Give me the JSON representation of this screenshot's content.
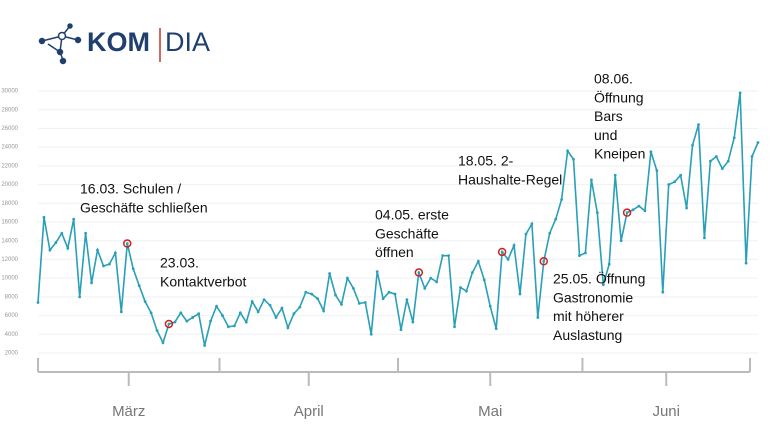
{
  "logo": [
    "KOM",
    "DIA"
  ],
  "chart_data": {
    "type": "line",
    "color": "#2a9fb8",
    "grid": true,
    "ylim": [
      2000,
      30000
    ],
    "yticks": [
      2000,
      4000,
      6000,
      8000,
      10000,
      12000,
      14000,
      16000,
      18000,
      20000,
      22000,
      24000,
      26000,
      28000,
      30000
    ],
    "months": [
      "März",
      "April",
      "Mai",
      "Juni"
    ],
    "values": [
      7400,
      16500,
      13000,
      13800,
      14800,
      13200,
      16300,
      8000,
      14800,
      9500,
      13000,
      11300,
      11500,
      12700,
      6400,
      13700,
      11000,
      9200,
      7500,
      6300,
      4400,
      3100,
      5100,
      5300,
      6300,
      5400,
      5800,
      6200,
      2800,
      5400,
      7000,
      6000,
      4800,
      4900,
      6300,
      5300,
      7500,
      6400,
      7700,
      7100,
      5800,
      6800,
      4700,
      6200,
      6900,
      8500,
      8300,
      7800,
      6500,
      10500,
      8200,
      7200,
      10000,
      8900,
      7300,
      7400,
      4000,
      10700,
      7800,
      8500,
      8300,
      4500,
      7700,
      5300,
      10600,
      8900,
      10000,
      9600,
      12400,
      12400,
      4800,
      9000,
      8600,
      10600,
      11800,
      9800,
      7000,
      4600,
      12800,
      12000,
      13500,
      8300,
      14700,
      15800,
      5800,
      11800,
      14800,
      16300,
      18400,
      23600,
      22700,
      12400,
      12700,
      20500,
      17000,
      9300,
      11500,
      21000,
      14000,
      17000,
      17300,
      17700,
      17200,
      23500,
      21500,
      8500,
      20000,
      20300,
      21000,
      17500,
      24200,
      26400,
      14300,
      22500,
      23000,
      21700,
      22500,
      25000,
      29800,
      11600,
      23000,
      24500
    ],
    "annotations": [
      [
        "16.03. Schulen /",
        "Geschäfte schließen"
      ],
      [
        "23.03.",
        "Kontaktverbot"
      ],
      [
        "04.05. erste",
        "Geschäfte",
        "öffnen"
      ],
      [
        "18.05. 2-",
        "Haushalte-Regel"
      ],
      [
        "25.05. Öffnung",
        "Gastronomie",
        "mit höherer",
        "Auslastung"
      ],
      [
        "08.06.",
        "Öffnung",
        "Bars",
        "und",
        "Kneipen"
      ]
    ]
  }
}
